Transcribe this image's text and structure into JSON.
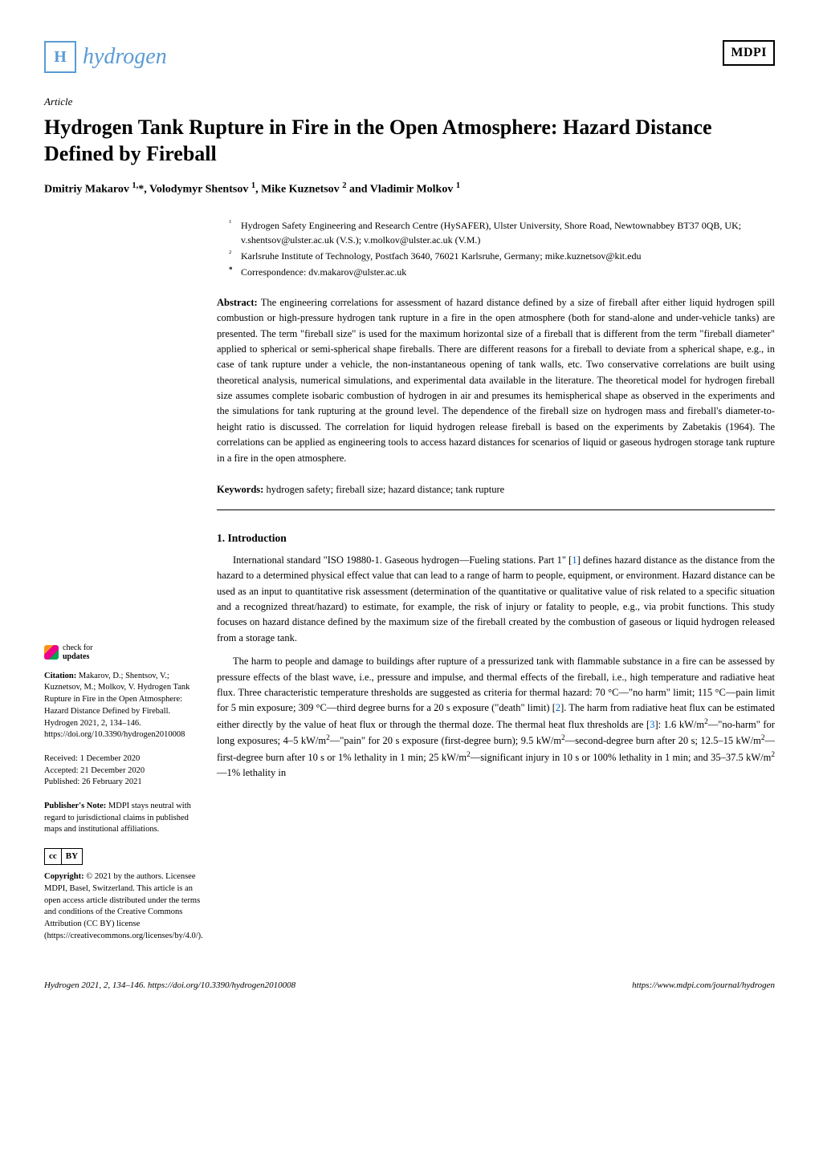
{
  "header": {
    "journal_logo_letter": "H",
    "journal_name": "hydrogen",
    "publisher_logo": "MDPI"
  },
  "article": {
    "type_label": "Article",
    "title": "Hydrogen Tank Rupture in Fire in the Open Atmosphere: Hazard Distance Defined by Fireball",
    "authors_line": "Dmitriy Makarov 1,*, Volodymyr Shentsov 1, Mike Kuznetsov 2 and Vladimir Molkov 1"
  },
  "affiliations": [
    {
      "num": "1",
      "text": "Hydrogen Safety Engineering and Research Centre (HySAFER), Ulster University, Shore Road, Newtownabbey BT37 0QB, UK; v.shentsov@ulster.ac.uk (V.S.); v.molkov@ulster.ac.uk (V.M.)"
    },
    {
      "num": "2",
      "text": "Karlsruhe Institute of Technology, Postfach 3640, 76021 Karlsruhe, Germany; mike.kuznetsov@kit.edu"
    },
    {
      "num": "*",
      "text": "Correspondence: dv.makarov@ulster.ac.uk"
    }
  ],
  "abstract": {
    "label": "Abstract:",
    "text": "The engineering correlations for assessment of hazard distance defined by a size of fireball after either liquid hydrogen spill combustion or high-pressure hydrogen tank rupture in a fire in the open atmosphere (both for stand-alone and under-vehicle tanks) are presented. The term \"fireball size\" is used for the maximum horizontal size of a fireball that is different from the term \"fireball diameter\" applied to spherical or semi-spherical shape fireballs. There are different reasons for a fireball to deviate from a spherical shape, e.g., in case of tank rupture under a vehicle, the non-instantaneous opening of tank walls, etc. Two conservative correlations are built using theoretical analysis, numerical simulations, and experimental data available in the literature. The theoretical model for hydrogen fireball size assumes complete isobaric combustion of hydrogen in air and presumes its hemispherical shape as observed in the experiments and the simulations for tank rupturing at the ground level. The dependence of the fireball size on hydrogen mass and fireball's diameter-to-height ratio is discussed. The correlation for liquid hydrogen release fireball is based on the experiments by Zabetakis (1964). The correlations can be applied as engineering tools to access hazard distances for scenarios of liquid or gaseous hydrogen storage tank rupture in a fire in the open atmosphere."
  },
  "keywords": {
    "label": "Keywords:",
    "text": "hydrogen safety; fireball size; hazard distance; tank rupture"
  },
  "section1": {
    "heading": "1. Introduction",
    "para1_pre": "International standard \"ISO 19880-1. Gaseous hydrogen—Fueling stations. Part 1\" [",
    "para1_ref1": "1",
    "para1_post": "] defines hazard distance as the distance from the hazard to a determined physical effect value that can lead to a range of harm to people, equipment, or environment. Hazard distance can be used as an input to quantitative risk assessment (determination of the quantitative or qualitative value of risk related to a specific situation and a recognized threat/hazard) to estimate, for example, the risk of injury or fatality to people, e.g., via probit functions. This study focuses on hazard distance defined by the maximum size of the fireball created by the combustion of gaseous or liquid hydrogen released from a storage tank.",
    "para2_pre": "The harm to people and damage to buildings after rupture of a pressurized tank with flammable substance in a fire can be assessed by pressure effects of the blast wave, i.e., pressure and impulse, and thermal effects of the fireball, i.e., high temperature and radiative heat flux. Three characteristic temperature thresholds are suggested as criteria for thermal hazard: 70 °C—\"no harm\" limit; 115 °C—pain limit for 5 min exposure; 309 °C—third degree burns for a 20 s exposure (\"death\" limit) [",
    "para2_ref2": "2",
    "para2_mid": "]. The harm from radiative heat flux can be estimated either directly by the value of heat flux or through the thermal doze. The thermal heat flux thresholds are [",
    "para2_ref3": "3",
    "para2_post": "]: 1.6 kW/m2—\"no-harm\" for long exposures; 4–5 kW/m2—\"pain\" for 20 s exposure (first-degree burn); 9.5 kW/m2—second-degree burn after 20 s; 12.5–15 kW/m2—first-degree burn after 10 s or 1% lethality in 1 min; 25 kW/m2—significant injury in 10 s or 100% lethality in 1 min; and 35–37.5 kW/m2—1% lethality in"
  },
  "sidebar": {
    "check_line1": "check for",
    "check_line2": "updates",
    "citation_label": "Citation:",
    "citation_text": " Makarov, D.; Shentsov, V.; Kuznetsov, M.; Molkov, V. Hydrogen Tank Rupture in Fire in the Open Atmosphere: Hazard Distance Defined by Fireball. Hydrogen 2021, 2, 134–146. https://doi.org/10.3390/hydrogen2010008",
    "received": "Received: 1 December 2020",
    "accepted": "Accepted: 21 December 2020",
    "published": "Published: 26 February 2021",
    "publisher_note_label": "Publisher's Note:",
    "publisher_note_text": " MDPI stays neutral with regard to jurisdictional claims in published maps and institutional affiliations.",
    "cc_label": "cc",
    "by_label": "BY",
    "copyright_label": "Copyright:",
    "copyright_text": " © 2021 by the authors. Licensee MDPI, Basel, Switzerland. This article is an open access article distributed under the terms and conditions of the Creative Commons Attribution (CC BY) license (https://creativecommons.org/licenses/by/4.0/)."
  },
  "footer": {
    "left": "Hydrogen 2021, 2, 134–146. https://doi.org/10.3390/hydrogen2010008",
    "right": "https://www.mdpi.com/journal/hydrogen"
  }
}
